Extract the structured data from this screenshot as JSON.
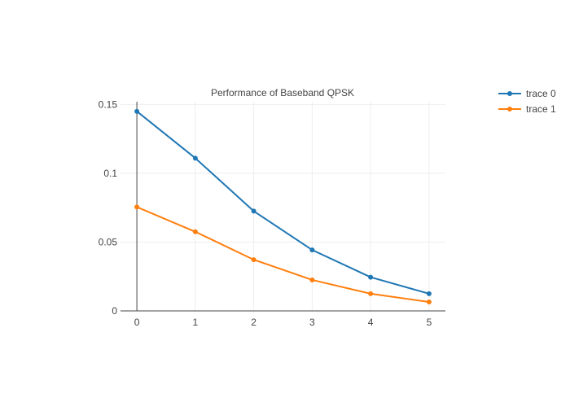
{
  "chart_data": {
    "type": "line",
    "title": "Performance of Baseband QPSK",
    "xlabel": "",
    "ylabel": "",
    "x": [
      0,
      1,
      2,
      3,
      4,
      5
    ],
    "x_ticks": [
      "0",
      "1",
      "2",
      "3",
      "4",
      "5"
    ],
    "y_ticks": [
      "0",
      "0.05",
      "0.1",
      "0.15"
    ],
    "xlim": [
      -0.28,
      5.28
    ],
    "ylim": [
      0,
      0.152
    ],
    "grid": true,
    "legend_position": "top-right",
    "series": [
      {
        "name": "trace 0",
        "color": "#1f77b4",
        "values": [
          0.145,
          0.111,
          0.0725,
          0.0443,
          0.0245,
          0.0125
        ]
      },
      {
        "name": "trace 1",
        "color": "#ff7f0e",
        "values": [
          0.0755,
          0.0575,
          0.0372,
          0.0225,
          0.0125,
          0.0065
        ]
      }
    ]
  }
}
